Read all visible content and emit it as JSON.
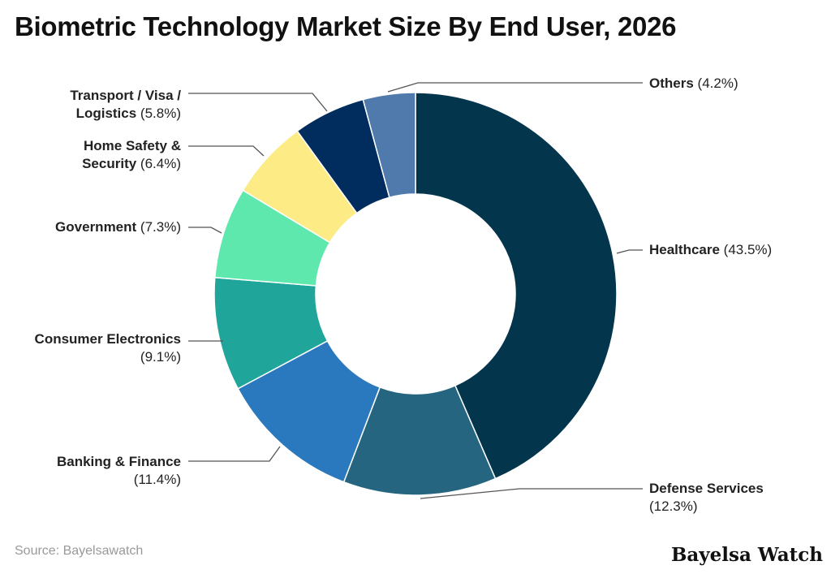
{
  "chart_data": {
    "type": "pie",
    "title": "Biometric Technology Market Size By End User, 2026",
    "donut": true,
    "categories": [
      "Healthcare",
      "Defense Services",
      "Banking & Finance",
      "Consumer Electronics",
      "Government",
      "Home Safety & Security",
      "Transport / Visa / Logistics",
      "Others"
    ],
    "values": [
      43.5,
      12.3,
      11.4,
      9.1,
      7.3,
      6.4,
      5.8,
      4.2
    ],
    "labels": [
      "(43.5%)",
      "(12.3%)",
      "(11.4%)",
      "(9.1%)",
      "(7.3%)",
      "(6.4%)",
      "(5.8%)",
      "(4.2%)"
    ],
    "colors": [
      "#03354d",
      "#266580",
      "#2a78bd",
      "#20a59a",
      "#5fe8ad",
      "#fdec85",
      "#012d5e",
      "#4f7aab"
    ],
    "unit": "%"
  },
  "source": "Source: Bayelsawatch",
  "logo": "Bayelsa Watch"
}
